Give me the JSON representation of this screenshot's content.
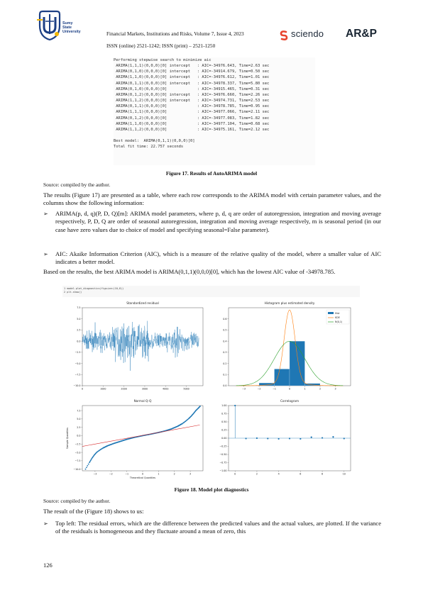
{
  "header": {
    "university_name": [
      "Sumy",
      "State",
      "University"
    ],
    "journal_line": "Financial Markets, Institutions and Risks, Volume 7, Issue 4, 2023",
    "issn_line": "ISSN (online) 2521-1242; ISSN (print) – 2521-1250",
    "publisher_logo_text": "sciendo",
    "brand_logo_text": "AR&P"
  },
  "code_output": [
    "Performing stepwise search to minimize aic",
    " ARIMA(1,1,1)(0,0,0)[0] intercept   : AIC=-34976.643, Time=2.63 sec",
    " ARIMA(0,1,0)(0,0,0)[0] intercept   : AIC=-34914.679, Time=0.50 sec",
    " ARIMA(1,1,0)(0,0,0)[0] intercept   : AIC=-34976.612, Time=1.01 sec",
    " ARIMA(0,1,1)(0,0,0)[0] intercept   : AIC=-34978.337, Time=5.80 sec",
    " ARIMA(0,1,0)(0,0,0)[0]             : AIC=-34915.465, Time=0.31 sec",
    " ARIMA(0,1,2)(0,0,0)[0] intercept   : AIC=-34976.660, Time=2.26 sec",
    " ARIMA(1,1,2)(0,0,0)[0] intercept   : AIC=-34974.731, Time=2.53 sec",
    " ARIMA(0,1,1)(0,0,0)[0]             : AIC=-34978.785, Time=0.95 sec",
    " ARIMA(1,1,1)(0,0,0)[0]             : AIC=-34977.066, Time=2.11 sec",
    " ARIMA(0,1,2)(0,0,0)[0]             : AIC=-34977.083, Time=1.82 sec",
    " ARIMA(1,1,0)(0,0,0)[0]             : AIC=-34977.104, Time=0.68 sec",
    " ARIMA(1,1,2)(0,0,0)[0]             : AIC=-34975.161, Time=2.12 sec",
    "",
    "Best model:  ARIMA(0,1,1)(0,0,0)[0]",
    "Total fit time: 22.757 seconds"
  ],
  "figure17": {
    "caption": "Figure 17. Results of AutoARIMA model",
    "source": "Source: compiled by the author."
  },
  "para1": "The results (Figure 17) are presented as a table, where each row corresponds to the ARIMA model with certain parameter values, and the columns show the following information:",
  "bullets1": [
    "ARIMA(p, d, q)(P, D, Q)[m]: ARIMA model parameters, where p, d, q are order of autoregression, integration and moving average respectively, P, D, Q are order of seasonal autoregression, integration and moving average respectively, m is seasonal period (in our case have zero values due to choice of model and specifying seasonal=False parameter).",
    "AIC: Akaike Information Criterion (AIC), which is a measure of the relative quality of the model, where a smaller value of AIC indicates a better model."
  ],
  "bullet_glyph": "➢",
  "para2": "Based on the results, the best ARIMA model is ARIMA(0,1,1)(0,0,0)[0], which has the lowest AIC value of -34978.785.",
  "figure18": {
    "code_lines": [
      "1 model.plot_diagnostics(figsize=(10,8))",
      "2 plt.show()"
    ],
    "caption": "Figure 18. Model plot diagnostics",
    "source": "Source: compiled by the author."
  },
  "para3": "The result of the (Figure 18) shows to us:",
  "bullets2": [
    "Top left: The residual errors, which are the difference between the predicted values and the actual values, are plotted. If the variance of the residuals is homogeneous and they fluctuate around a mean of zero, this"
  ],
  "page_number": "126",
  "chart_data": [
    {
      "type": "line",
      "title": "Standardized residual",
      "x_range": [
        0,
        5800
      ],
      "x_ticks": [
        "0",
        "1000",
        "2000",
        "3000",
        "4000",
        "5000"
      ],
      "y_ticks": [
        "−10.0",
        "−7.5",
        "−5.0",
        "−2.5",
        "0.0",
        "2.5",
        "5.0",
        "7.5"
      ],
      "ylim": [
        -10.0,
        7.5
      ],
      "color": "#1f77b4"
    },
    {
      "type": "bar",
      "title": "Histogram plus estimated density",
      "x_ticks": [
        "−3",
        "−2",
        "−1",
        "0",
        "1",
        "2",
        "3"
      ],
      "y_ticks": [
        "0.0",
        "0.1",
        "0.2",
        "0.3",
        "0.4",
        "0.5",
        "0.6"
      ],
      "ylim": [
        0,
        0.7
      ],
      "bins": [
        {
          "x0": -3,
          "x1": -2,
          "value": 0.003
        },
        {
          "x0": -2,
          "x1": -1,
          "value": 0.025
        },
        {
          "x0": -1,
          "x1": 0,
          "value": 0.15
        },
        {
          "x0": 0,
          "x1": 1,
          "value": 0.4
        },
        {
          "x0": 1,
          "x1": 2,
          "value": 0.02
        },
        {
          "x0": 2,
          "x1": 3,
          "value": 0.003
        }
      ],
      "series": [
        {
          "name": "Hist",
          "color": "#1f77b4"
        },
        {
          "name": "KDE",
          "color": "#ff7f0e"
        },
        {
          "name": "N(0,1)",
          "color": "#2ca02c"
        }
      ],
      "legend": "top-right"
    },
    {
      "type": "scatter",
      "title": "Normal Q-Q",
      "xlabel": "Theoretical Quantiles",
      "ylabel": "Sample Quantiles",
      "x_ticks": [
        "−3",
        "−2",
        "−1",
        "0",
        "1",
        "2",
        "3"
      ],
      "y_ticks": [
        "−10.0",
        "−7.5",
        "−5.0",
        "−2.5",
        "0.0",
        "2.5",
        "5.0",
        "7.5"
      ],
      "xlim": [
        -3.8,
        3.8
      ],
      "ylim": [
        -10.5,
        9
      ],
      "points": [
        [
          -3.6,
          -10.0
        ],
        [
          -3.35,
          -8.0
        ],
        [
          -3.2,
          -6.8
        ],
        [
          -3.05,
          -5.8
        ],
        [
          -2.9,
          -5.0
        ],
        [
          -2.7,
          -4.3
        ],
        [
          -2.5,
          -3.7
        ],
        [
          -2.2,
          -3.0
        ],
        [
          -1.8,
          -2.3
        ],
        [
          -1.4,
          -1.7
        ],
        [
          -1.0,
          -1.1
        ],
        [
          -0.5,
          -0.5
        ],
        [
          0.0,
          0.0
        ],
        [
          0.5,
          0.45
        ],
        [
          1.0,
          0.95
        ],
        [
          1.4,
          1.4
        ],
        [
          1.8,
          2.0
        ],
        [
          2.2,
          2.8
        ],
        [
          2.5,
          3.6
        ],
        [
          2.7,
          4.3
        ],
        [
          2.9,
          5.1
        ],
        [
          3.05,
          5.8
        ],
        [
          3.2,
          6.6
        ],
        [
          3.35,
          7.5
        ],
        [
          3.5,
          8.2
        ],
        [
          3.62,
          8.8
        ]
      ],
      "reference_line": [
        [
          -3.8,
          -3.2
        ],
        [
          3.6,
          3.2
        ]
      ],
      "colors": {
        "points": "#1f77b4",
        "line": "#d62728"
      }
    },
    {
      "type": "bar",
      "title": "Correlogram",
      "x_ticks": [
        "0",
        "2",
        "4",
        "6",
        "8",
        "10"
      ],
      "y_ticks": [
        "−1.00",
        "−0.75",
        "−0.50",
        "−0.25",
        "0.00",
        "0.25",
        "0.50",
        "0.75",
        "1.00"
      ],
      "ylim": [
        -1,
        1
      ],
      "lags": [
        0,
        1,
        2,
        3,
        4,
        5,
        6,
        7,
        8,
        9,
        10
      ],
      "values": [
        1.0,
        -0.01,
        0.0,
        -0.01,
        -0.02,
        -0.01,
        -0.02,
        0.03,
        0.01,
        0.04,
        -0.01
      ],
      "color": "#1f77b4"
    }
  ]
}
